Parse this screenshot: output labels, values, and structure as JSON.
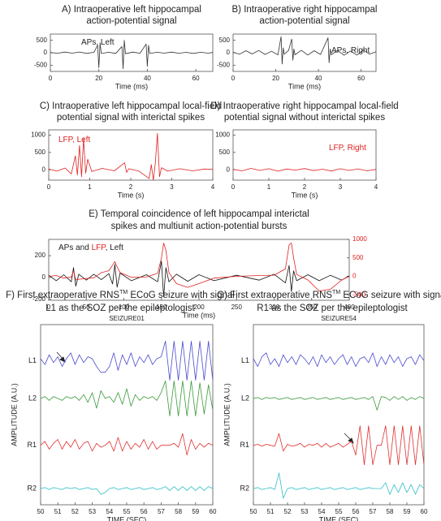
{
  "chart_data": [
    {
      "type": "line",
      "title": [
        "A) Intraoperative left hippocampal",
        "action-potential signal"
      ],
      "xlabel": "Time (ms)",
      "annotation": [
        {
          "text": "APs, Left",
          "color": "#222222"
        }
      ],
      "xlim": [
        0,
        67
      ],
      "xticks": [
        0,
        20,
        40,
        60
      ],
      "ylim": [
        -750,
        750
      ],
      "yticks": [
        -500,
        0,
        500
      ],
      "x": [
        0,
        3,
        6,
        9,
        12,
        15,
        18,
        19.5,
        20,
        20.5,
        21,
        24,
        27,
        29.5,
        30,
        30.5,
        31,
        34,
        37,
        39.5,
        40,
        40.5,
        41,
        44,
        47,
        50,
        53,
        56,
        59,
        62,
        65,
        67
      ],
      "series": [
        {
          "name": "APs, Left",
          "color": "#333333",
          "values": [
            10,
            -20,
            25,
            -15,
            30,
            -25,
            20,
            300,
            -600,
            400,
            -30,
            20,
            -25,
            250,
            -650,
            500,
            -40,
            25,
            -20,
            350,
            -550,
            300,
            -30,
            20,
            -15,
            25,
            -20,
            15,
            -25,
            20,
            -15,
            10
          ]
        }
      ]
    },
    {
      "type": "line",
      "title": [
        "B) Intraoperative right hippocampal",
        "action-potential signal"
      ],
      "xlabel": "Time (ms)",
      "annotation": [
        {
          "text": "APs, Right",
          "color": "#222222"
        }
      ],
      "xlim": [
        0,
        67
      ],
      "xticks": [
        0,
        20,
        40,
        60
      ],
      "ylim": [
        -750,
        750
      ],
      "yticks": [
        -500,
        0,
        500
      ],
      "x": [
        0,
        3,
        6,
        9,
        12,
        15,
        18,
        21,
        22.5,
        23,
        23.5,
        24,
        26,
        27.5,
        28,
        28.5,
        29,
        32,
        35,
        38,
        41,
        44.5,
        45,
        45.5,
        46,
        49,
        52,
        55,
        58,
        61,
        64,
        67
      ],
      "series": [
        {
          "name": "APs, Right",
          "color": "#333333",
          "values": [
            20,
            -60,
            80,
            -50,
            90,
            -70,
            60,
            -80,
            650,
            -450,
            200,
            -60,
            90,
            550,
            -300,
            150,
            -80,
            100,
            -90,
            80,
            -70,
            600,
            -400,
            150,
            -80,
            90,
            -100,
            70,
            -90,
            110,
            -60,
            40
          ]
        }
      ]
    },
    {
      "type": "line",
      "title": [
        "C) Intraoperative left hippocampal local-field",
        "potential signal with interictal spikes"
      ],
      "xlabel": "Time (s)",
      "annotation": [
        {
          "text": "LFP, Left",
          "color": "#e02020"
        }
      ],
      "xlim": [
        0,
        4
      ],
      "xticks": [
        0,
        1,
        2,
        3,
        4
      ],
      "ylim": [
        -300,
        1150
      ],
      "yticks": [
        0,
        500,
        1000
      ],
      "x": [
        0,
        0.2,
        0.4,
        0.55,
        0.65,
        0.7,
        0.75,
        0.8,
        0.85,
        0.9,
        0.95,
        1.05,
        1.3,
        1.6,
        1.85,
        1.9,
        1.95,
        2.2,
        2.45,
        2.5,
        2.55,
        2.6,
        2.65,
        2.7,
        2.75,
        2.9,
        3.2,
        3.5,
        3.8,
        4
      ],
      "series": [
        {
          "name": "LFP, Left",
          "color": "#e02020",
          "values": [
            20,
            -40,
            50,
            -120,
            400,
            -150,
            700,
            -200,
            900,
            -100,
            300,
            -50,
            40,
            -30,
            200,
            -80,
            30,
            -40,
            -250,
            150,
            -300,
            200,
            1050,
            -200,
            60,
            -40,
            30,
            -30,
            20,
            10
          ]
        }
      ]
    },
    {
      "type": "line",
      "title": [
        "D) Intraoperative right hippocampal local-field",
        "potential signal without interictal spikes"
      ],
      "xlabel": "Time (s)",
      "annotation": [
        {
          "text": "LFP, Right",
          "color": "#e02020"
        }
      ],
      "xlim": [
        0,
        4
      ],
      "xticks": [
        0,
        1,
        2,
        3,
        4
      ],
      "ylim": [
        -300,
        1150
      ],
      "yticks": [
        0,
        500,
        1000
      ],
      "x": [
        0,
        0.25,
        0.5,
        0.75,
        1,
        1.25,
        1.5,
        1.75,
        2,
        2.25,
        2.5,
        2.75,
        3,
        3.25,
        3.5,
        3.75,
        4
      ],
      "series": [
        {
          "name": "LFP, Right",
          "color": "#e02020",
          "values": [
            10,
            -30,
            40,
            -20,
            30,
            -40,
            20,
            -10,
            35,
            -25,
            15,
            -35,
            30,
            -20,
            25,
            -30,
            10
          ]
        }
      ]
    },
    {
      "type": "line",
      "title": [
        "E) Temporal coincidence of left hippocampal interictal",
        "spikes and multiunit action-potential bursts"
      ],
      "xlabel": "Time (ms)",
      "annotation": [
        {
          "text": "APs and ",
          "color": "#222222"
        },
        {
          "text": "LFP",
          "color": "#e02020"
        },
        {
          "text": ", Left",
          "color": "#222222"
        }
      ],
      "xlim": [
        0,
        400
      ],
      "xticks": [
        0,
        50,
        100,
        150,
        200,
        250,
        300,
        350,
        400
      ],
      "ylim": [
        -210,
        350
      ],
      "yticks": [
        -200,
        0,
        200
      ],
      "y2lim": [
        -650,
        1000
      ],
      "y2ticks": [
        -500,
        0,
        500,
        1000
      ],
      "y2color": "#e02020",
      "x": [
        0,
        10,
        20,
        30,
        33,
        36,
        40,
        50,
        60,
        70,
        80,
        85,
        88,
        91,
        95,
        110,
        130,
        145,
        150,
        153,
        156,
        160,
        170,
        185,
        200,
        220,
        250,
        280,
        300,
        315,
        320,
        323,
        326,
        330,
        345,
        360,
        375,
        390,
        400
      ],
      "series": [
        {
          "name": "APs",
          "color": "#111111",
          "values": [
            20,
            -30,
            25,
            -40,
            90,
            -80,
            30,
            -25,
            30,
            -20,
            35,
            -60,
            120,
            -90,
            40,
            -30,
            25,
            -40,
            150,
            -180,
            90,
            -40,
            30,
            -35,
            25,
            -30,
            20,
            -25,
            30,
            -50,
            110,
            -130,
            60,
            -30,
            25,
            -30,
            20,
            -25,
            15
          ]
        },
        {
          "name": "LFP",
          "color": "#e02020",
          "axis": "y2",
          "values": [
            0,
            20,
            -50,
            -20,
            150,
            -100,
            -80,
            -60,
            -40,
            100,
            150,
            300,
            400,
            250,
            100,
            -30,
            -20,
            80,
            500,
            900,
            700,
            100,
            -200,
            -300,
            -200,
            -50,
            0,
            20,
            30,
            200,
            850,
            900,
            500,
            50,
            -100,
            -400,
            -350,
            -100,
            0
          ]
        }
      ]
    },
    {
      "type": "ecog",
      "title": [
        "F) First extraoperative RNS",
        "TM",
        " ECoG seizure with signal",
        "L1 as the SOZ per the epileptologist"
      ],
      "subtitle": "SEIZURE01",
      "xlabel": "TIME (SEC)",
      "ylabel": "AMPLITUDE (A.U.)",
      "xlim": [
        50,
        60
      ],
      "xticks": [
        50,
        51,
        52,
        53,
        54,
        55,
        56,
        57,
        58,
        59,
        60
      ],
      "ylim": [
        -1,
        1
      ],
      "x": [
        50,
        50.25,
        50.5,
        50.75,
        51,
        51.25,
        51.5,
        51.75,
        52,
        52.25,
        52.5,
        52.75,
        53,
        53.25,
        53.5,
        53.75,
        54,
        54.25,
        54.5,
        54.75,
        55,
        55.25,
        55.5,
        55.75,
        56,
        56.25,
        56.5,
        56.75,
        57,
        57.25,
        57.5,
        57.75,
        58,
        58.25,
        58.5,
        58.75,
        59,
        59.25,
        59.5,
        59.75,
        60
      ],
      "series": [
        {
          "name": "L1",
          "color": "#4a4ad0",
          "values": [
            0.1,
            -0.2,
            0.3,
            -0.1,
            0.2,
            -0.3,
            0.1,
            0.4,
            -0.2,
            0.3,
            -0.1,
            0.2,
            0.1,
            -0.3,
            -0.6,
            -0.6,
            -0.3,
            0.4,
            -0.5,
            0.3,
            -0.2,
            0.4,
            -0.3,
            0.2,
            -0.1,
            0.3,
            -0.2,
            0.1,
            0.2,
            1,
            -1,
            1,
            -1,
            1,
            -1,
            1,
            -1,
            1,
            -1,
            1,
            -1
          ]
        },
        {
          "name": "L2",
          "color": "#3a9a3a",
          "values": [
            0,
            0.1,
            -0.1,
            0.1,
            0,
            -0.1,
            0.1,
            0,
            0.1,
            -0.1,
            0.2,
            -0.2,
            0.3,
            -0.5,
            0.4,
            0,
            0.1,
            -0.2,
            0.3,
            -0.3,
            0.5,
            -0.4,
            0.2,
            -0.1,
            0.1,
            0,
            0.1,
            -0.1,
            0.3,
            0.9,
            -0.9,
            0.9,
            -0.9,
            0.9,
            -0.9,
            0.9,
            -0.9,
            0.8,
            -0.8,
            0.7,
            -0.6
          ]
        },
        {
          "name": "R1",
          "color": "#e03030",
          "values": [
            0,
            0.2,
            -0.2,
            0.1,
            0.3,
            -0.2,
            0.2,
            -0.1,
            0.3,
            -0.2,
            0.1,
            0.2,
            -0.3,
            0.1,
            -0.1,
            0,
            0.2,
            -0.3,
            0.4,
            -0.3,
            0.2,
            -0.2,
            0.1,
            -0.1,
            0.3,
            -0.2,
            0.2,
            -0.2,
            0,
            0,
            0,
            0.1,
            -0.1,
            0.6,
            -0.5,
            0.3,
            -0.2,
            0.1,
            -0.1,
            0.1,
            0
          ]
        },
        {
          "name": "R2",
          "color": "#30c0c8",
          "values": [
            0,
            0.05,
            -0.05,
            0.05,
            0,
            -0.05,
            0.05,
            0,
            0.05,
            -0.05,
            0,
            0.05,
            -0.05,
            0,
            -0.3,
            -0.2,
            0,
            0.05,
            -0.05,
            0,
            0.05,
            -0.05,
            0,
            0.05,
            -0.05,
            0,
            0.05,
            -0.05,
            0,
            0.1,
            -0.1,
            0.1,
            -0.1,
            0.1,
            -0.1,
            0.1,
            -0.1,
            0.1,
            -0.1,
            0.1,
            0
          ]
        }
      ]
    },
    {
      "type": "ecog",
      "title": [
        "G) First extraoperative RNS",
        "TM",
        " ECoG seizure with signal",
        "R1 as the SOZ per the epileptologist"
      ],
      "subtitle": "SEIZURE54",
      "xlabel": "TIME (SEC)",
      "ylabel": "AMPLITUDE (A.U.)",
      "xlim": [
        50,
        60
      ],
      "xticks": [
        50,
        51,
        52,
        53,
        54,
        55,
        56,
        57,
        58,
        59,
        60
      ],
      "ylim": [
        -1,
        1
      ],
      "x": [
        50,
        50.25,
        50.5,
        50.75,
        51,
        51.25,
        51.5,
        51.75,
        52,
        52.25,
        52.5,
        52.75,
        53,
        53.25,
        53.5,
        53.75,
        54,
        54.25,
        54.5,
        54.75,
        55,
        55.25,
        55.5,
        55.75,
        56,
        56.25,
        56.5,
        56.75,
        57,
        57.25,
        57.5,
        57.75,
        58,
        58.25,
        58.5,
        58.75,
        59,
        59.25,
        59.5,
        59.75,
        60
      ],
      "series": [
        {
          "name": "L1",
          "color": "#4a4ad0",
          "values": [
            0.1,
            -0.3,
            0.2,
            0.4,
            -0.2,
            0.1,
            -0.3,
            0.3,
            -0.1,
            0.2,
            -0.2,
            0.3,
            0.1,
            -0.2,
            0.2,
            -0.3,
            0.3,
            -0.1,
            0.2,
            -0.2,
            0.1,
            0.3,
            -0.2,
            0.2,
            -0.3,
            0.1,
            0.2,
            -0.1,
            0.4,
            -0.3,
            0.2,
            -0.2,
            0.3,
            -0.1,
            0.2,
            -0.3,
            0.1,
            0.2,
            -0.2,
            0.3,
            0
          ]
        },
        {
          "name": "L2",
          "color": "#3a9a3a",
          "values": [
            0,
            0.05,
            -0.05,
            0.05,
            0,
            0.05,
            -0.05,
            0,
            0.05,
            -0.05,
            0,
            0.05,
            -0.05,
            0,
            0.05,
            -0.05,
            0,
            0.05,
            -0.05,
            0,
            0.05,
            -0.05,
            0,
            0.05,
            -0.05,
            0,
            0.05,
            -0.05,
            0.1,
            -0.6,
            0.1,
            0.05,
            -0.1,
            0.1,
            -0.05,
            0.1,
            -0.1,
            0.05,
            -0.05,
            0.1,
            0
          ]
        },
        {
          "name": "R1",
          "color": "#e03030",
          "values": [
            0,
            0.05,
            -0.05,
            0.05,
            0,
            -0.05,
            0.6,
            -0.3,
            0.05,
            -0.05,
            0,
            0.1,
            -0.1,
            0.05,
            0,
            0.1,
            -0.1,
            0.1,
            -0.1,
            0,
            0.1,
            -0.1,
            0.05,
            0.2,
            -0.5,
            1,
            -1,
            1,
            -1,
            0,
            0,
            1,
            -1,
            1,
            -1,
            1,
            -1,
            1,
            -1,
            1,
            -1
          ]
        },
        {
          "name": "R2",
          "color": "#30c0c8",
          "values": [
            0,
            0.05,
            -0.05,
            0,
            0.05,
            -0.05,
            0.8,
            -0.5,
            0,
            0.05,
            -0.05,
            0,
            0.05,
            -0.05,
            0,
            0.05,
            -0.05,
            0,
            0.05,
            -0.05,
            0,
            0.05,
            -0.05,
            0,
            0.05,
            -0.05,
            0,
            0.05,
            0,
            0,
            0,
            0.3,
            -0.3,
            0.2,
            -0.2,
            0.3,
            -0.2,
            0.2,
            -0.3,
            0.2,
            0
          ]
        }
      ]
    }
  ]
}
